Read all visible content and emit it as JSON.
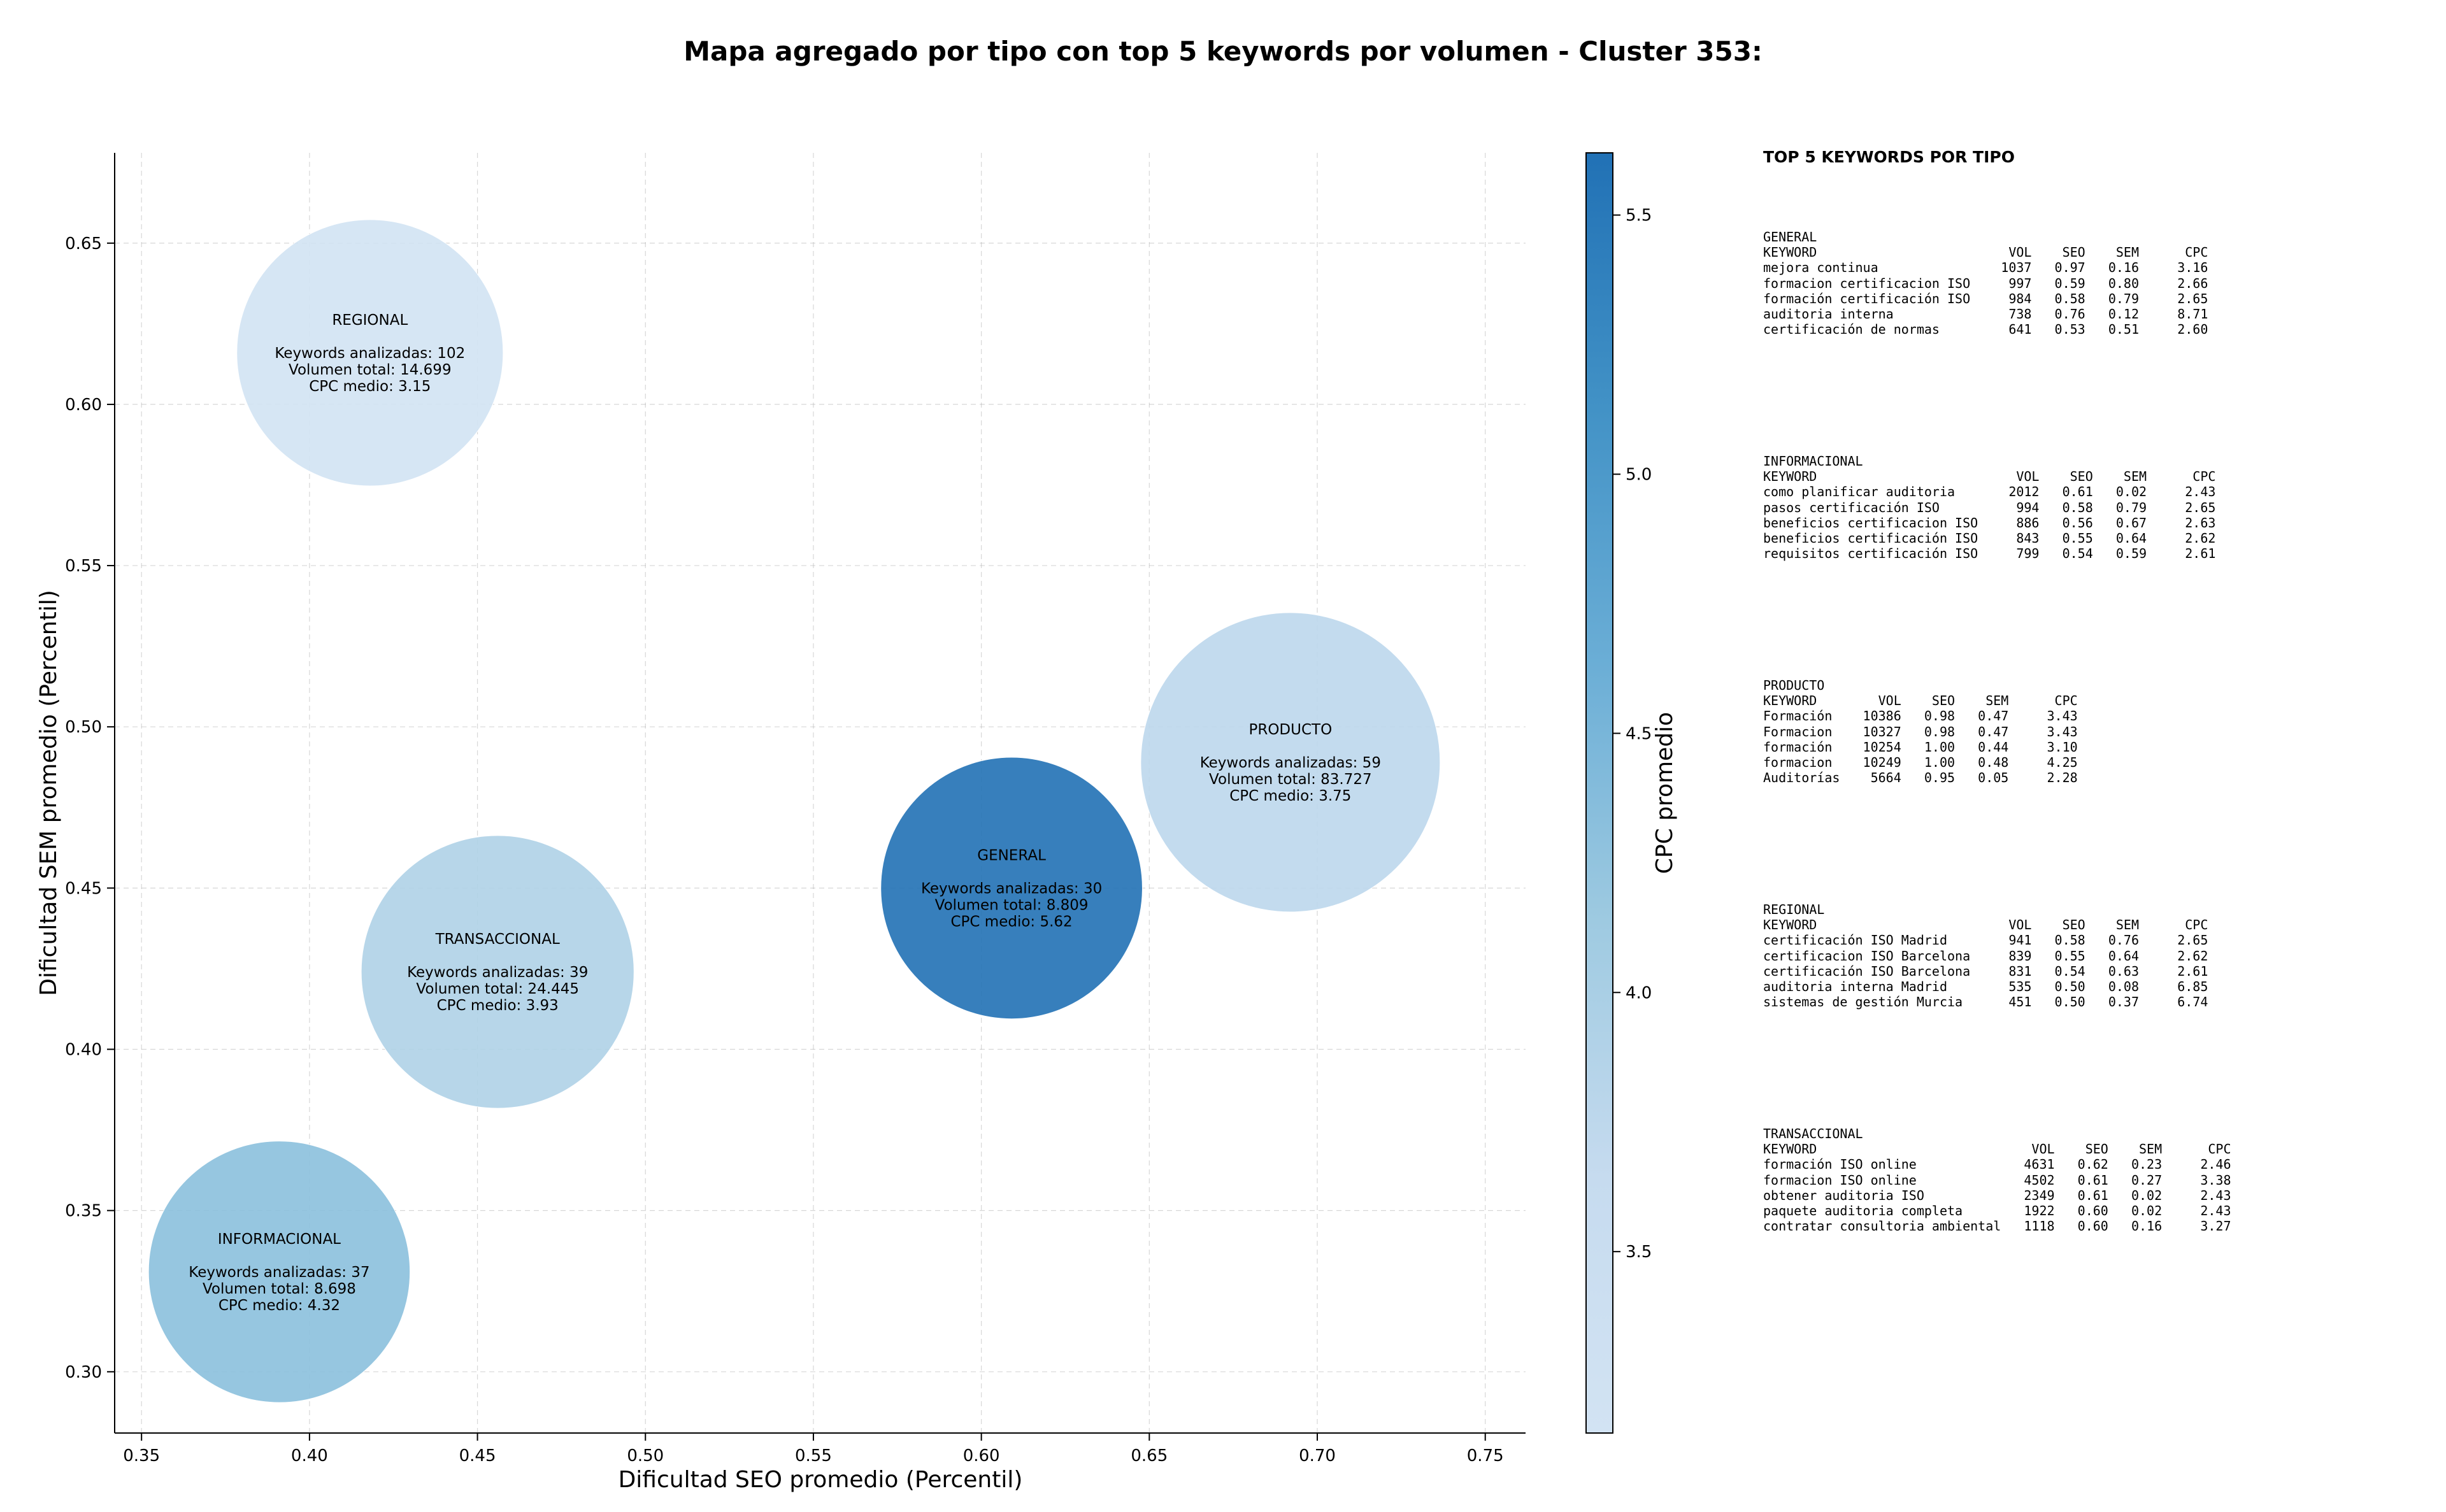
{
  "chart_data": {
    "type": "bubble",
    "title": "Mapa agregado por tipo con top 5 keywords por volumen - Cluster 353:",
    "xlabel": "Dificultad SEO promedio (Percentil)",
    "ylabel": "Dificultad SEM promedio (Percentil)",
    "xlim": [
      0.342,
      0.762
    ],
    "ylim": [
      0.281,
      0.678
    ],
    "xticks": [
      0.35,
      0.4,
      0.45,
      0.5,
      0.55,
      0.6,
      0.65,
      0.7,
      0.75
    ],
    "xtick_labels": [
      "0.35",
      "0.40",
      "0.45",
      "0.50",
      "0.55",
      "0.60",
      "0.65",
      "0.70",
      "0.75"
    ],
    "yticks": [
      0.3,
      0.35,
      0.4,
      0.45,
      0.5,
      0.55,
      0.6,
      0.65
    ],
    "ytick_labels": [
      "0.30",
      "0.35",
      "0.40",
      "0.45",
      "0.50",
      "0.55",
      "0.60",
      "0.65"
    ],
    "grid": true,
    "colorbar": {
      "label": "CPC promedio",
      "range": [
        3.15,
        5.62
      ],
      "ticks": [
        3.5,
        4.0,
        4.5,
        5.0,
        5.5
      ],
      "tick_labels": [
        "3.5",
        "4.0",
        "4.5",
        "5.0",
        "5.5"
      ],
      "colors": [
        "#d2e3f3",
        "#c6dbef",
        "#9ecae1",
        "#6baed6",
        "#4292c6",
        "#2171b5"
      ]
    },
    "series": [
      {
        "name": "REGIONAL",
        "x": 0.418,
        "y": 0.616,
        "keywords_label": "Keywords analizadas: 102",
        "volume_label": "Volumen total: 14.699",
        "cpc_label": "CPC medio: 3.15",
        "keywords": 102,
        "volume": 14699,
        "cpc": 3.15
      },
      {
        "name": "PRODUCTO",
        "x": 0.692,
        "y": 0.489,
        "keywords_label": "Keywords analizadas: 59",
        "volume_label": "Volumen total: 83.727",
        "cpc_label": "CPC medio: 3.75",
        "keywords": 59,
        "volume": 83727,
        "cpc": 3.75
      },
      {
        "name": "GENERAL",
        "x": 0.609,
        "y": 0.45,
        "keywords_label": "Keywords analizadas: 30",
        "volume_label": "Volumen total: 8.809",
        "cpc_label": "CPC medio: 5.62",
        "keywords": 30,
        "volume": 8809,
        "cpc": 5.62
      },
      {
        "name": "TRANSACCIONAL",
        "x": 0.456,
        "y": 0.424,
        "keywords_label": "Keywords analizadas: 39",
        "volume_label": "Volumen total: 24.445",
        "cpc_label": "CPC medio: 3.93",
        "keywords": 39,
        "volume": 24445,
        "cpc": 3.93
      },
      {
        "name": "INFORMACIONAL",
        "x": 0.391,
        "y": 0.331,
        "keywords_label": "Keywords analizadas: 37",
        "volume_label": "Volumen total: 8.698",
        "cpc_label": "CPC medio: 4.32",
        "keywords": 37,
        "volume": 8698,
        "cpc": 4.32
      }
    ]
  },
  "keywords_panel": {
    "heading": "TOP 5 KEYWORDS POR TIPO",
    "blocks": [
      {
        "text": "GENERAL\nKEYWORD                         VOL    SEO    SEM      CPC\nmejora continua                1037   0.97   0.16     3.16\nformacion certificacion ISO     997   0.59   0.80     2.66\nformación certificación ISO     984   0.58   0.79     2.65\nauditoria interna               738   0.76   0.12     8.71\ncertificación de normas         641   0.53   0.51     2.60"
      },
      {
        "text": "INFORMACIONAL\nKEYWORD                          VOL    SEO    SEM      CPC\ncomo planificar auditoria       2012   0.61   0.02     2.43\npasos certificación ISO          994   0.58   0.79     2.65\nbeneficios certificacion ISO     886   0.56   0.67     2.63\nbeneficios certificación ISO     843   0.55   0.64     2.62\nrequisitos certificación ISO     799   0.54   0.59     2.61"
      },
      {
        "text": "PRODUCTO\nKEYWORD        VOL    SEO    SEM      CPC\nFormación    10386   0.98   0.47     3.43\nFormacion    10327   0.98   0.47     3.43\nformación    10254   1.00   0.44     3.10\nformacion    10249   1.00   0.48     4.25\nAuditorías    5664   0.95   0.05     2.28"
      },
      {
        "text": "REGIONAL\nKEYWORD                         VOL    SEO    SEM      CPC\ncertificación ISO Madrid        941   0.58   0.76     2.65\ncertificacion ISO Barcelona     839   0.55   0.64     2.62\ncertificación ISO Barcelona     831   0.54   0.63     2.61\nauditoria interna Madrid        535   0.50   0.08     6.85\nsistemas de gestión Murcia      451   0.50   0.37     6.74"
      },
      {
        "text": "TRANSACCIONAL\nKEYWORD                            VOL    SEO    SEM      CPC\nformación ISO online              4631   0.62   0.23     2.46\nformacion ISO online              4502   0.61   0.27     3.38\nobtener auditoria ISO             2349   0.61   0.02     2.43\npaquete auditoria completa        1922   0.60   0.02     2.43\ncontratar consultoria ambiental   1118   0.60   0.16     3.27"
      }
    ]
  }
}
